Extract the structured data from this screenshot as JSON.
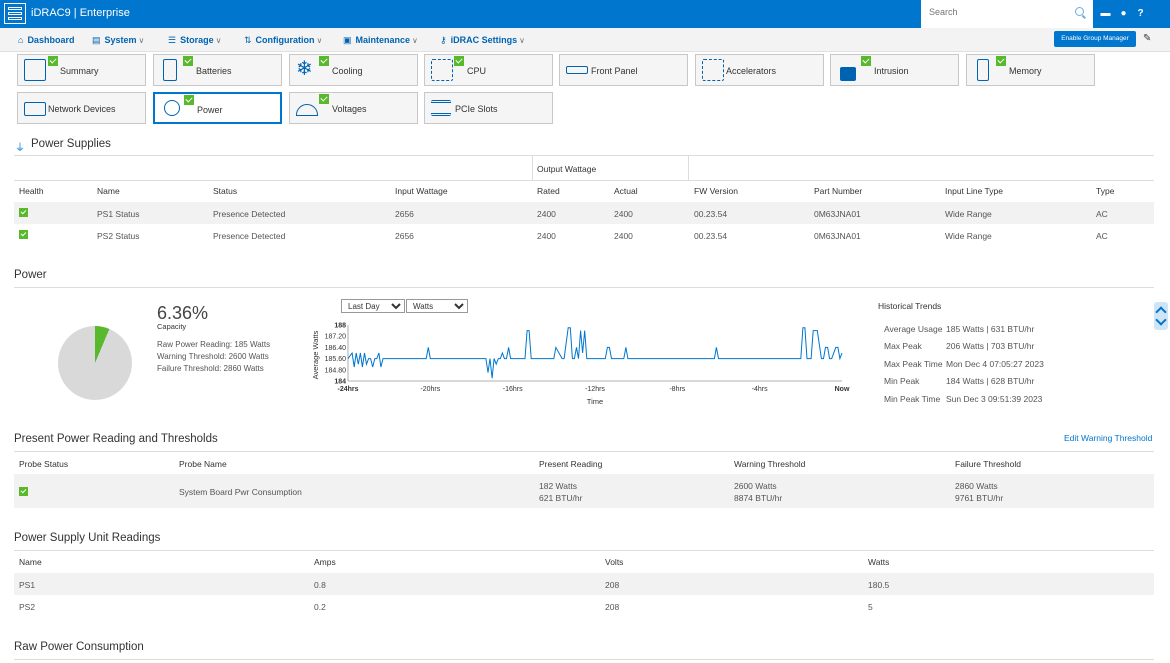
{
  "app": {
    "title": "iDRAC9 | Enterprise"
  },
  "search": {
    "placeholder": "Search"
  },
  "nav": [
    {
      "id": "dashboard",
      "label": "Dashboard",
      "icon": "home-icon",
      "glyph": "⌂"
    },
    {
      "id": "system",
      "label": "System",
      "icon": "system-icon",
      "glyph": "▤"
    },
    {
      "id": "storage",
      "label": "Storage",
      "icon": "database-icon",
      "glyph": "☰"
    },
    {
      "id": "configuration",
      "label": "Configuration",
      "icon": "config-icon",
      "glyph": "⇅"
    },
    {
      "id": "maintenance",
      "label": "Maintenance",
      "icon": "maintenance-icon",
      "glyph": "▣"
    },
    {
      "id": "idrac-settings",
      "label": "iDRAC Settings",
      "icon": "key-icon",
      "glyph": "⚷"
    }
  ],
  "group_manager": {
    "label": "Enable Group Manager"
  },
  "tiles": [
    {
      "id": "summary",
      "label": "Summary",
      "checked": true
    },
    {
      "id": "batteries",
      "label": "Batteries",
      "checked": true
    },
    {
      "id": "cooling",
      "label": "Cooling",
      "checked": true
    },
    {
      "id": "cpu",
      "label": "CPU",
      "checked": true
    },
    {
      "id": "front-panel",
      "label": "Front Panel",
      "checked": false
    },
    {
      "id": "accelerators",
      "label": "Accelerators",
      "checked": false
    },
    {
      "id": "intrusion",
      "label": "Intrusion",
      "checked": true
    },
    {
      "id": "memory",
      "label": "Memory",
      "checked": true
    },
    {
      "id": "network-devices",
      "label": "Network Devices",
      "checked": false
    },
    {
      "id": "power",
      "label": "Power",
      "checked": true,
      "active": true
    },
    {
      "id": "voltages",
      "label": "Voltages",
      "checked": true
    },
    {
      "id": "pcie-slots",
      "label": "PCIe Slots",
      "checked": false
    }
  ],
  "power_supplies": {
    "title": "Power Supplies",
    "group_header": "Output Wattage",
    "columns": [
      "Health",
      "Name",
      "Status",
      "Input Wattage",
      "Rated",
      "Actual",
      "FW Version",
      "Part Number",
      "Input Line Type",
      "Type"
    ],
    "rows": [
      [
        "PS1 Status",
        "Presence Detected",
        "2656",
        "2400",
        "2400",
        "00.23.54",
        "0M63JNA01",
        "Wide Range",
        "AC"
      ],
      [
        "PS2 Status",
        "Presence Detected",
        "2656",
        "2400",
        "2400",
        "00.23.54",
        "0M63JNA01",
        "Wide Range",
        "AC"
      ]
    ]
  },
  "power": {
    "title": "Power",
    "capacity_percent": 6.36,
    "capacity": "6.36%",
    "capacity_label": "Capacity",
    "raw_reading": "Raw Power Reading: 185 Watts",
    "warning_threshold": "Warning Threshold: 2600 Watts",
    "failure_threshold": "Failure Threshold: 2860 Watts",
    "range_selected": "Last Day",
    "unit_selected": "Watts",
    "colors": {
      "pie_used": "#58b92c",
      "pie_free": "#d9d9d9",
      "line": "#0076ce"
    }
  },
  "chart_data": {
    "type": "line",
    "xlabel": "Time",
    "ylabel": "Average Watts",
    "ylim": [
      184,
      188
    ],
    "y_ticks": [
      "188",
      "187.20",
      "186.40",
      "185.60",
      "184.80",
      "184"
    ],
    "x_ticks": [
      "-24hrs",
      "-20hrs",
      "-16hrs",
      "-12hrs",
      "-8hrs",
      "-4hrs",
      "Now"
    ],
    "xlim": [
      -24,
      0
    ],
    "x": [
      -24,
      -23.8,
      -23.7,
      -23.6,
      -23.5,
      -23.4,
      -23.3,
      -23.2,
      -23.1,
      -23.0,
      -22.9,
      -22.8,
      -22.7,
      -22.6,
      -22.5,
      -22.4,
      -22.3,
      -22.2,
      -22.0,
      -21.0,
      -20.2,
      -20.1,
      -20.0,
      -19.0,
      -18.0,
      -17.3,
      -17.2,
      -17.1,
      -17.0,
      -16.9,
      -16.8,
      -16.7,
      -16.6,
      -16.5,
      -16.4,
      -16.3,
      -16.2,
      -16.1,
      -16.0,
      -15.9,
      -15.8,
      -15.4,
      -15.3,
      -15.2,
      -15.1,
      -15.0,
      -14.9,
      -14.8,
      -14.0,
      -13.9,
      -13.6,
      -13.5,
      -13.3,
      -13.2,
      -13.1,
      -13.0,
      -12.9,
      -12.8,
      -12.7,
      -12.6,
      -12.5,
      -12.4,
      -12.0,
      -11.5,
      -11.4,
      -11.3,
      -11.2,
      -11.1,
      -10.6,
      -10.5,
      -10.4,
      -10.0,
      -9.0,
      -8.0,
      -6.3,
      -6.2,
      -6.1,
      -6.0,
      -5.0,
      -4.0,
      -2.1,
      -2.0,
      -1.9,
      -1.8,
      -1.7,
      -1.5,
      -1.4,
      -1.2,
      -1.0,
      -0.9,
      -0.8,
      -0.7,
      -0.6,
      -0.5,
      -0.3,
      -0.2,
      -0.1,
      0
    ],
    "values": [
      185.6,
      186.0,
      185.0,
      186.0,
      185.2,
      186.0,
      185.0,
      186.0,
      185.2,
      185.6,
      185.6,
      185.0,
      185.6,
      185.6,
      186.0,
      185.0,
      185.6,
      185.6,
      185.6,
      185.6,
      185.6,
      186.4,
      185.6,
      185.6,
      185.6,
      185.6,
      184.6,
      185.6,
      184.2,
      185.6,
      185.2,
      185.6,
      185.6,
      186.0,
      185.6,
      185.6,
      186.4,
      185.6,
      185.6,
      185.6,
      185.6,
      185.6,
      187.6,
      187.6,
      185.6,
      185.6,
      185.6,
      185.6,
      185.6,
      186.4,
      185.6,
      185.6,
      187.8,
      187.8,
      185.6,
      185.6,
      186.4,
      185.6,
      187.6,
      186.0,
      187.6,
      185.6,
      185.6,
      185.6,
      186.4,
      186.4,
      185.6,
      185.6,
      185.6,
      186.4,
      185.6,
      185.6,
      185.6,
      185.6,
      185.6,
      185.6,
      186.4,
      185.6,
      185.6,
      185.6,
      185.6,
      185.6,
      187.8,
      187.8,
      185.6,
      185.6,
      187.6,
      187.6,
      185.6,
      185.6,
      186.4,
      186.4,
      185.6,
      185.6,
      186.4,
      186.4,
      185.6,
      186.0
    ]
  },
  "historical_trends": {
    "title": "Historical Trends",
    "items": [
      {
        "label": "Average Usage",
        "value": "185 Watts | 631 BTU/hr"
      },
      {
        "label": "Max Peak",
        "value": "206 Watts | 703 BTU/hr"
      },
      {
        "label": "Max Peak Time",
        "value": "Mon Dec 4 07:05:27 2023"
      },
      {
        "label": "Min Peak",
        "value": "184 Watts | 628 BTU/hr"
      },
      {
        "label": "Min Peak Time",
        "value": "Sun Dec 3 09:51:39 2023"
      }
    ]
  },
  "present_reading": {
    "title": "Present Power Reading and Thresholds",
    "edit_link": "Edit Warning Threshold",
    "columns": [
      "Probe Status",
      "Probe Name",
      "Present Reading",
      "Warning Threshold",
      "Failure Threshold"
    ],
    "row": {
      "name": "System Board Pwr Consumption",
      "present_watts": "182 Watts",
      "present_btu": "621 BTU/hr",
      "warning_watts": "2600 Watts",
      "warning_btu": "8874 BTU/hr",
      "failure_watts": "2860 Watts",
      "failure_btu": "9761 BTU/hr"
    }
  },
  "psu_readings": {
    "title": "Power Supply Unit Readings",
    "columns": [
      "Name",
      "Amps",
      "Volts",
      "Watts"
    ],
    "rows": [
      [
        "PS1",
        "0.8",
        "208",
        "180.5"
      ],
      [
        "PS2",
        "0.2",
        "208",
        "5"
      ]
    ]
  },
  "raw_power": {
    "title": "Raw Power Consumption"
  }
}
